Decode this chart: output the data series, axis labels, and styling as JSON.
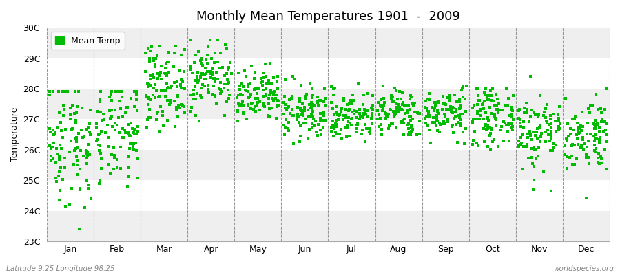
{
  "title": "Monthly Mean Temperatures 1901  -  2009",
  "ylabel": "Temperature",
  "xlabel": "",
  "bottom_left_text": "Latitude 9.25 Longitude 98.25",
  "bottom_right_text": "worldspecies.org",
  "legend_label": "Mean Temp",
  "dot_color": "#00bb00",
  "background_color": "#ffffff",
  "band_light": "#efefef",
  "band_white": "#ffffff",
  "ylim": [
    23,
    30
  ],
  "ytick_labels": [
    "23C",
    "24C",
    "25C",
    "26C",
    "27C",
    "28C",
    "29C",
    "30C"
  ],
  "ytick_values": [
    23,
    24,
    25,
    26,
    27,
    28,
    29,
    30
  ],
  "months": [
    "Jan",
    "Feb",
    "Mar",
    "Apr",
    "May",
    "Jun",
    "Jul",
    "Aug",
    "Sep",
    "Oct",
    "Nov",
    "Dec"
  ],
  "month_means": [
    26.3,
    26.5,
    28.1,
    28.4,
    27.7,
    27.2,
    27.1,
    27.2,
    27.2,
    27.1,
    26.6,
    26.5
  ],
  "month_stds": [
    1.1,
    0.85,
    0.65,
    0.55,
    0.45,
    0.45,
    0.42,
    0.4,
    0.4,
    0.45,
    0.65,
    0.6
  ],
  "month_mins": [
    23.1,
    24.0,
    25.5,
    26.9,
    26.5,
    25.5,
    26.0,
    26.5,
    26.2,
    25.8,
    24.2,
    24.4
  ],
  "month_maxs": [
    27.9,
    27.9,
    29.4,
    29.6,
    29.1,
    28.4,
    28.4,
    28.1,
    28.1,
    28.0,
    28.4,
    28.0
  ],
  "n_years": 109,
  "seed": 42
}
